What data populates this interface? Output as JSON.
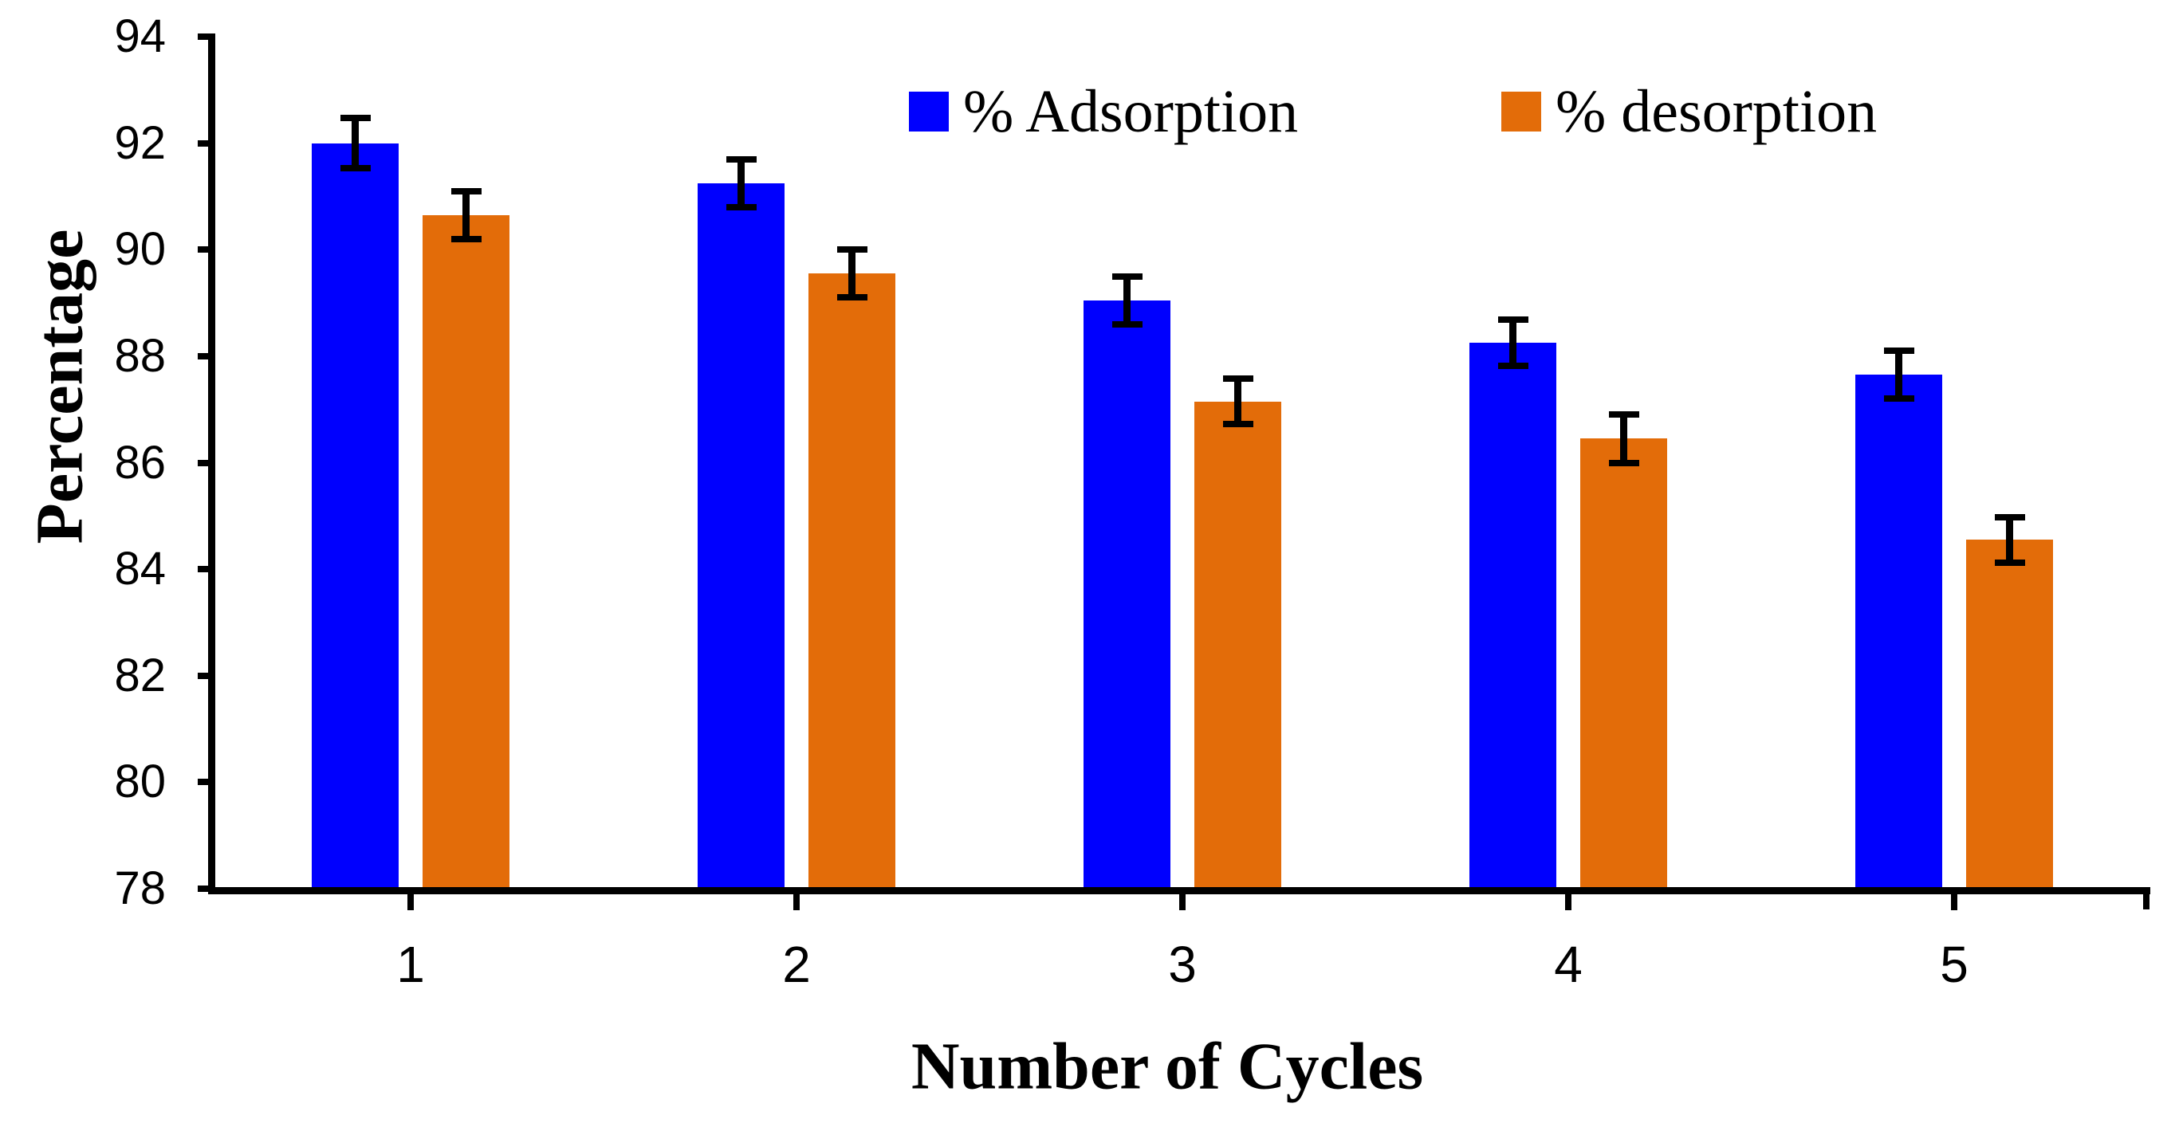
{
  "chart_data": {
    "type": "bar",
    "title": "",
    "xlabel": "Number of Cycles",
    "ylabel": "Percentage",
    "categories": [
      "1",
      "2",
      "3",
      "4",
      "5"
    ],
    "series": [
      {
        "name": "% Adsorption",
        "color": "#0000fe",
        "values": [
          92.0,
          91.25,
          89.05,
          88.25,
          87.65
        ],
        "errors": [
          0.47,
          0.45,
          0.45,
          0.43,
          0.45
        ]
      },
      {
        "name": "% desorption",
        "color": "#e36c09",
        "values": [
          90.65,
          89.55,
          87.15,
          86.45,
          84.55
        ],
        "errors": [
          0.45,
          0.45,
          0.43,
          0.45,
          0.43
        ]
      }
    ],
    "ylim": [
      78,
      94
    ],
    "ytick_step": 2,
    "yticks": [
      78,
      80,
      82,
      84,
      86,
      88,
      90,
      92,
      94
    ],
    "grid": false,
    "error_bars": true,
    "legend_position": "top",
    "axis_color": "#000000",
    "background_color": "#ffffff"
  }
}
